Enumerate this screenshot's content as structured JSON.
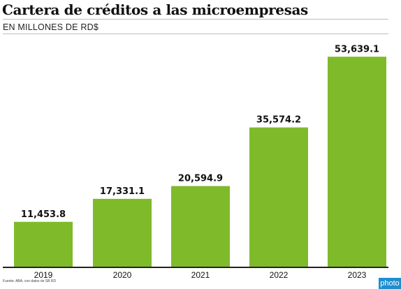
{
  "header": {
    "title": "Cartera de créditos a las microempresas",
    "subtitle": "EN MILLONES DE RD$"
  },
  "footer": {
    "source": "Fuente: ABA, con datos de SB RD"
  },
  "watermark": {
    "label": "photo"
  },
  "colors": {
    "bar": "#7fba2a",
    "axis": "#222222",
    "text": "#111111"
  },
  "chart_data": {
    "type": "bar",
    "categories": [
      "2019",
      "2020",
      "2021",
      "2022",
      "2023"
    ],
    "values": [
      11453.8,
      17331.1,
      20594.9,
      35574.2,
      53639.1
    ],
    "data_labels": [
      "11,453.8",
      "17,331.1",
      "20,594.9",
      "35,574.2",
      "53,639.1"
    ],
    "title": "Cartera de créditos a las microempresas",
    "subtitle": "EN MILLONES DE RD$",
    "xlabel": "",
    "ylabel": "",
    "ylim": [
      0,
      61000
    ],
    "grid": false,
    "legend": "none"
  }
}
